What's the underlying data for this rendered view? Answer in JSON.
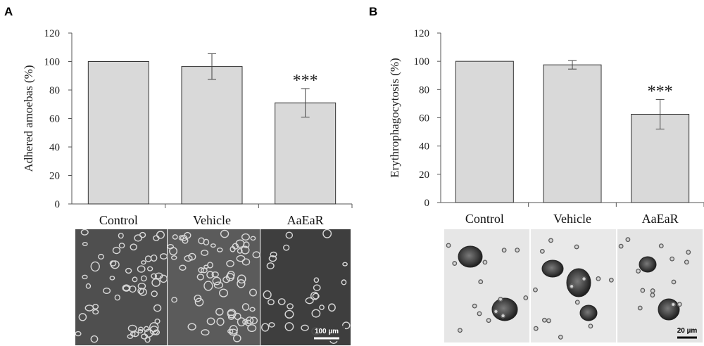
{
  "panels": [
    {
      "letter": "A",
      "micrograph_scale": "100 µm",
      "chart_data": {
        "type": "bar",
        "categories": [
          "Control",
          "Vehicle",
          "AaEaR"
        ],
        "values": [
          100,
          96.5,
          71
        ],
        "errors": [
          0,
          9,
          10
        ],
        "annotations": [
          "",
          "",
          "***"
        ],
        "ylabel": "Adhered amoebas (%)",
        "xlabel": "",
        "ylim": [
          0,
          120
        ],
        "yticks": [
          0,
          20,
          40,
          60,
          80,
          100,
          120
        ],
        "grid": false,
        "bar_color": "#d9d9d9"
      }
    },
    {
      "letter": "B",
      "micrograph_scale": "20 µm",
      "chart_data": {
        "type": "bar",
        "categories": [
          "Control",
          "Vehicle",
          "AaEaR"
        ],
        "values": [
          100,
          97.5,
          62.5
        ],
        "errors": [
          0,
          3,
          10.5
        ],
        "annotations": [
          "",
          "",
          "***"
        ],
        "ylabel": "Erythrophagocytosis (%)",
        "xlabel": "",
        "ylim": [
          0,
          120
        ],
        "yticks": [
          0,
          20,
          40,
          60,
          80,
          100,
          120
        ],
        "grid": false,
        "bar_color": "#d9d9d9"
      }
    }
  ]
}
